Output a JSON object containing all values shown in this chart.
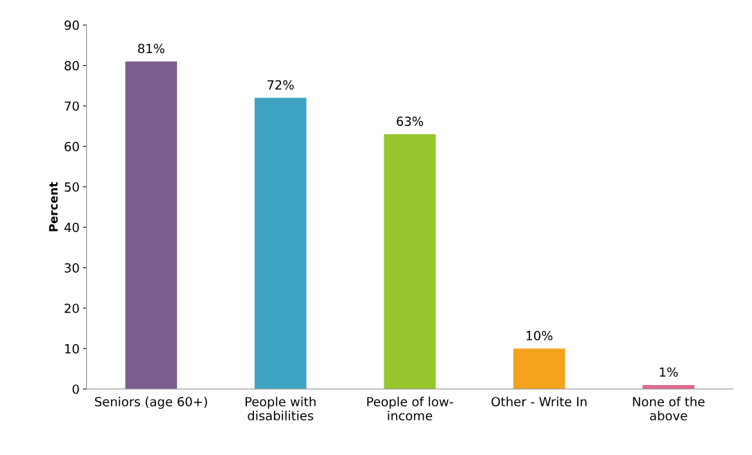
{
  "chart_data": {
    "type": "bar",
    "ylabel": "Percent",
    "categories": [
      "Seniors (age 60+)",
      "People with\ndisabilities",
      "People of low-\nincome",
      "Other - Write In",
      "None of the\nabove"
    ],
    "values": [
      81,
      72,
      63,
      10,
      1
    ],
    "colors": [
      "#7b5e8f",
      "#3ea3c2",
      "#96c72e",
      "#f5a31f",
      "#e2688b"
    ],
    "value_labels": [
      "81%",
      "72%",
      "63%",
      "10%",
      "1%"
    ],
    "ylim": [
      0,
      90
    ],
    "yticks": [
      0,
      10,
      20,
      30,
      40,
      50,
      60,
      70,
      80,
      90
    ],
    "grid": false,
    "legend": false
  }
}
